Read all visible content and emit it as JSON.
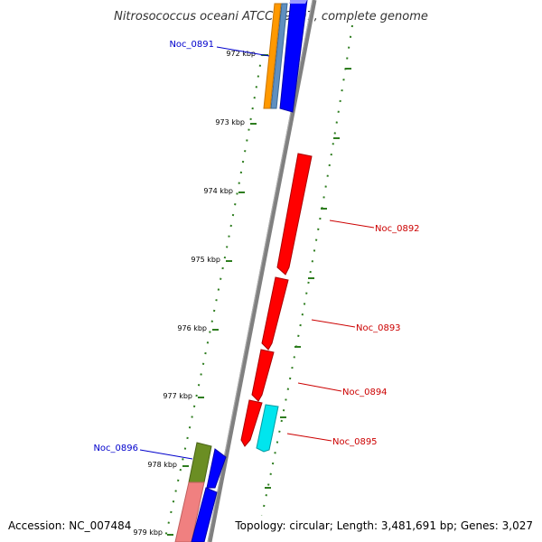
{
  "title": "Nitrosococcus oceani ATCC 19707, complete genome",
  "accession": "Accession: NC_007484",
  "topology": "Topology: circular; Length: 3,481,691 bp; Genes: 3,027",
  "ticks": [
    "972 kbp",
    "973 kbp",
    "974 kbp",
    "975 kbp",
    "976 kbp",
    "977 kbp",
    "978 kbp",
    "979 kbp"
  ],
  "labels": {
    "noc0891": "Noc_0891",
    "noc0892": "Noc_0892",
    "noc0893": "Noc_0893",
    "noc0894": "Noc_0894",
    "noc0895": "Noc_0895",
    "noc0896": "Noc_0896"
  },
  "colors": {
    "backbone": "#808080",
    "tick": "#2e7d1f",
    "forward_label": "#cc0000",
    "reverse_label": "#0000cc",
    "red_gene": "#ff0000",
    "blue_gene": "#0000ff",
    "cyan_gene": "#00e5ee",
    "orange_gene": "#ff9900",
    "steel_gene": "#5f8fc0",
    "olive_gene": "#6b8e23",
    "salmon_gene": "#f08080"
  }
}
